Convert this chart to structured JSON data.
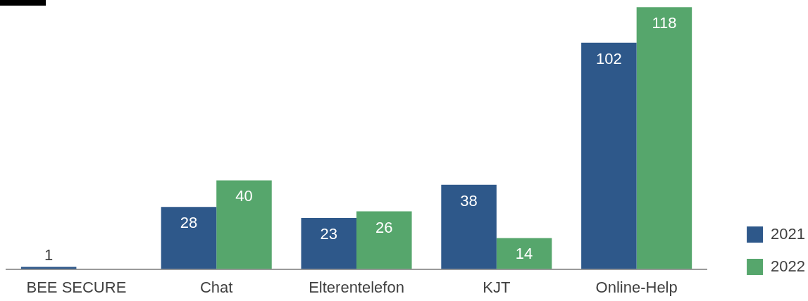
{
  "chart_data": {
    "type": "bar",
    "categories": [
      "BEE SECURE",
      "Chat",
      "Elterentelefon",
      "KJT",
      "Online-Help"
    ],
    "series": [
      {
        "name": "2021",
        "color": "#2e588a",
        "values": [
          1,
          28,
          23,
          38,
          102
        ]
      },
      {
        "name": "2022",
        "color": "#56a66c",
        "values": [
          null,
          40,
          26,
          14,
          118
        ]
      }
    ],
    "data_labels": true,
    "legend": "bottom right",
    "grid": false,
    "tick_labels": "x"
  }
}
